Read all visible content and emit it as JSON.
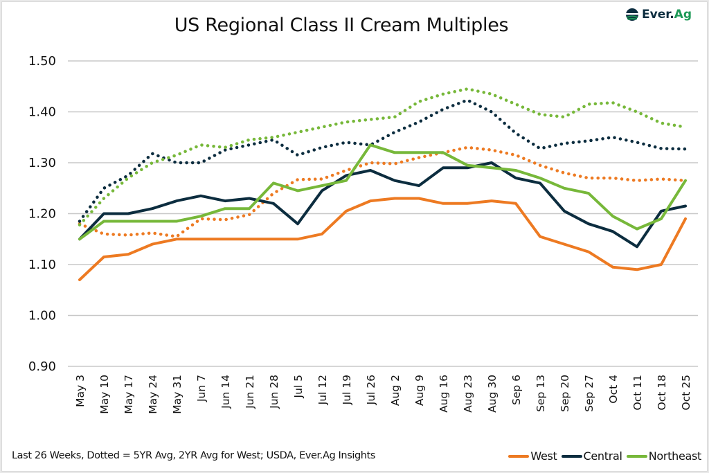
{
  "logo": {
    "brand_primary": "Ever.",
    "brand_secondary": "Ag",
    "icon": "ever-ag-logo-icon"
  },
  "footnote": "Last 26 Weeks, Dotted = 5YR Avg, 2YR Avg for West; USDA, Ever.Ag Insights",
  "chart_data": {
    "type": "line",
    "title": "US Regional Class II Cream Multiples",
    "xlabel": "",
    "ylabel": "",
    "ylim": [
      0.9,
      1.5
    ],
    "yticks": [
      "1.50",
      "1.40",
      "1.30",
      "1.20",
      "1.10",
      "1.00",
      "0.90"
    ],
    "ytick_values": [
      1.5,
      1.4,
      1.3,
      1.2,
      1.1,
      1.0,
      0.9
    ],
    "grid": true,
    "legend_position": "bottom-right",
    "categories": [
      "May 3",
      "May 10",
      "May 17",
      "May 24",
      "May 31",
      "Jun 7",
      "Jun 14",
      "Jun 21",
      "Jun 28",
      "Jul 5",
      "Jul 12",
      "Jul 19",
      "Jul 26",
      "Aug 2",
      "Aug 9",
      "Aug 16",
      "Aug 23",
      "Aug 30",
      "Sep 6",
      "Sep 13",
      "Sep 20",
      "Sep 27",
      "Oct 4",
      "Oct 11",
      "Oct 18",
      "Oct 25"
    ],
    "series": [
      {
        "name": "West",
        "style": "solid",
        "color": "#ed7a22",
        "in_legend": true,
        "values": [
          1.07,
          1.115,
          1.12,
          1.14,
          1.15,
          1.15,
          1.15,
          1.15,
          1.15,
          1.15,
          1.16,
          1.205,
          1.225,
          1.23,
          1.23,
          1.22,
          1.22,
          1.225,
          1.22,
          1.155,
          1.14,
          1.125,
          1.095,
          1.09,
          1.1,
          1.19
        ]
      },
      {
        "name": "Central",
        "style": "solid",
        "color": "#0c2d3f",
        "in_legend": true,
        "values": [
          1.15,
          1.2,
          1.2,
          1.21,
          1.225,
          1.235,
          1.225,
          1.23,
          1.22,
          1.18,
          1.245,
          1.275,
          1.285,
          1.265,
          1.255,
          1.29,
          1.29,
          1.3,
          1.27,
          1.26,
          1.205,
          1.18,
          1.165,
          1.135,
          1.205,
          1.215
        ]
      },
      {
        "name": "Northeast",
        "style": "solid",
        "color": "#77b83a",
        "in_legend": true,
        "values": [
          1.15,
          1.185,
          1.185,
          1.185,
          1.185,
          1.195,
          1.21,
          1.21,
          1.26,
          1.245,
          1.255,
          1.265,
          1.335,
          1.32,
          1.32,
          1.32,
          1.295,
          1.29,
          1.285,
          1.27,
          1.25,
          1.24,
          1.195,
          1.17,
          1.19,
          1.265
        ]
      },
      {
        "name": "West 2YR Avg",
        "style": "dotted",
        "color": "#ed7a22",
        "in_legend": false,
        "values": [
          1.18,
          1.16,
          1.158,
          1.162,
          1.155,
          1.19,
          1.188,
          1.198,
          1.24,
          1.267,
          1.268,
          1.285,
          1.3,
          1.298,
          1.31,
          1.32,
          1.33,
          1.325,
          1.315,
          1.295,
          1.28,
          1.27,
          1.27,
          1.265,
          1.268,
          1.265
        ]
      },
      {
        "name": "Central 5YR Avg",
        "style": "dotted",
        "color": "#0c2d3f",
        "in_legend": false,
        "values": [
          1.185,
          1.25,
          1.275,
          1.318,
          1.3,
          1.3,
          1.325,
          1.335,
          1.345,
          1.315,
          1.33,
          1.34,
          1.335,
          1.36,
          1.38,
          1.405,
          1.423,
          1.4,
          1.358,
          1.328,
          1.338,
          1.343,
          1.35,
          1.34,
          1.328,
          1.327
        ]
      },
      {
        "name": "Northeast 5YR Avg",
        "style": "dotted",
        "color": "#77b83a",
        "in_legend": false,
        "values": [
          1.178,
          1.23,
          1.27,
          1.3,
          1.315,
          1.335,
          1.33,
          1.345,
          1.35,
          1.36,
          1.37,
          1.38,
          1.385,
          1.39,
          1.42,
          1.435,
          1.445,
          1.435,
          1.415,
          1.395,
          1.39,
          1.415,
          1.418,
          1.4,
          1.378,
          1.37
        ]
      }
    ],
    "legend": [
      "West",
      "Central",
      "Northeast"
    ]
  }
}
